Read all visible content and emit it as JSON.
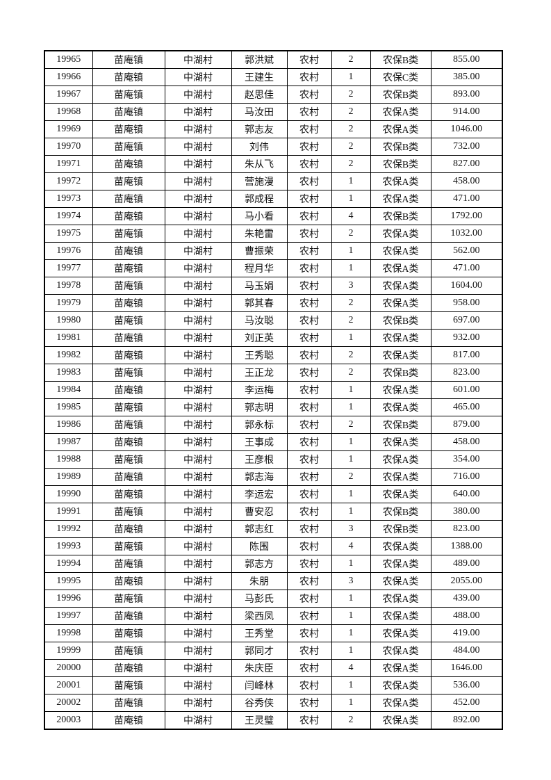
{
  "page": {
    "kind": "printed-table-page"
  },
  "colors": {
    "background": "#ffffff",
    "border": "#000000",
    "text": "#111111"
  },
  "table": {
    "cell_names": [
      "serial",
      "town",
      "village",
      "name",
      "residence-type",
      "count",
      "insurance-category",
      "amount"
    ],
    "rows": [
      [
        "19965",
        "苗庵镇",
        "中湖村",
        "郭洪斌",
        "农村",
        "2",
        "农保B类",
        "855.00"
      ],
      [
        "19966",
        "苗庵镇",
        "中湖村",
        "王建生",
        "农村",
        "1",
        "农保C类",
        "385.00"
      ],
      [
        "19967",
        "苗庵镇",
        "中湖村",
        "赵思佳",
        "农村",
        "2",
        "农保B类",
        "893.00"
      ],
      [
        "19968",
        "苗庵镇",
        "中湖村",
        "马汝田",
        "农村",
        "2",
        "农保A类",
        "914.00"
      ],
      [
        "19969",
        "苗庵镇",
        "中湖村",
        "郭志友",
        "农村",
        "2",
        "农保A类",
        "1046.00"
      ],
      [
        "19970",
        "苗庵镇",
        "中湖村",
        "刘伟",
        "农村",
        "2",
        "农保B类",
        "732.00"
      ],
      [
        "19971",
        "苗庵镇",
        "中湖村",
        "朱从飞",
        "农村",
        "2",
        "农保B类",
        "827.00"
      ],
      [
        "19972",
        "苗庵镇",
        "中湖村",
        "营施漫",
        "农村",
        "1",
        "农保A类",
        "458.00"
      ],
      [
        "19973",
        "苗庵镇",
        "中湖村",
        "郭成程",
        "农村",
        "1",
        "农保A类",
        "471.00"
      ],
      [
        "19974",
        "苗庵镇",
        "中湖村",
        "马小看",
        "农村",
        "4",
        "农保B类",
        "1792.00"
      ],
      [
        "19975",
        "苗庵镇",
        "中湖村",
        "朱艳雷",
        "农村",
        "2",
        "农保A类",
        "1032.00"
      ],
      [
        "19976",
        "苗庵镇",
        "中湖村",
        "曹振荣",
        "农村",
        "1",
        "农保A类",
        "562.00"
      ],
      [
        "19977",
        "苗庵镇",
        "中湖村",
        "程月华",
        "农村",
        "1",
        "农保A类",
        "471.00"
      ],
      [
        "19978",
        "苗庵镇",
        "中湖村",
        "马玉娟",
        "农村",
        "3",
        "农保A类",
        "1604.00"
      ],
      [
        "19979",
        "苗庵镇",
        "中湖村",
        "郭其春",
        "农村",
        "2",
        "农保A类",
        "958.00"
      ],
      [
        "19980",
        "苗庵镇",
        "中湖村",
        "马汝聪",
        "农村",
        "2",
        "农保B类",
        "697.00"
      ],
      [
        "19981",
        "苗庵镇",
        "中湖村",
        "刘正英",
        "农村",
        "1",
        "农保A类",
        "932.00"
      ],
      [
        "19982",
        "苗庵镇",
        "中湖村",
        "王秀聪",
        "农村",
        "2",
        "农保A类",
        "817.00"
      ],
      [
        "19983",
        "苗庵镇",
        "中湖村",
        "王正龙",
        "农村",
        "2",
        "农保B类",
        "823.00"
      ],
      [
        "19984",
        "苗庵镇",
        "中湖村",
        "李运梅",
        "农村",
        "1",
        "农保A类",
        "601.00"
      ],
      [
        "19985",
        "苗庵镇",
        "中湖村",
        "郭志明",
        "农村",
        "1",
        "农保A类",
        "465.00"
      ],
      [
        "19986",
        "苗庵镇",
        "中湖村",
        "郭永标",
        "农村",
        "2",
        "农保B类",
        "879.00"
      ],
      [
        "19987",
        "苗庵镇",
        "中湖村",
        "王事成",
        "农村",
        "1",
        "农保A类",
        "458.00"
      ],
      [
        "19988",
        "苗庵镇",
        "中湖村",
        "王彦根",
        "农村",
        "1",
        "农保A类",
        "354.00"
      ],
      [
        "19989",
        "苗庵镇",
        "中湖村",
        "郭志海",
        "农村",
        "2",
        "农保A类",
        "716.00"
      ],
      [
        "19990",
        "苗庵镇",
        "中湖村",
        "李运宏",
        "农村",
        "1",
        "农保A类",
        "640.00"
      ],
      [
        "19991",
        "苗庵镇",
        "中湖村",
        "曹安忍",
        "农村",
        "1",
        "农保B类",
        "380.00"
      ],
      [
        "19992",
        "苗庵镇",
        "中湖村",
        "郭志红",
        "农村",
        "3",
        "农保B类",
        "823.00"
      ],
      [
        "19993",
        "苗庵镇",
        "中湖村",
        "陈围",
        "农村",
        "4",
        "农保A类",
        "1388.00"
      ],
      [
        "19994",
        "苗庵镇",
        "中湖村",
        "郭志方",
        "农村",
        "1",
        "农保A类",
        "489.00"
      ],
      [
        "19995",
        "苗庵镇",
        "中湖村",
        "朱朋",
        "农村",
        "3",
        "农保A类",
        "2055.00"
      ],
      [
        "19996",
        "苗庵镇",
        "中湖村",
        "马彭氏",
        "农村",
        "1",
        "农保A类",
        "439.00"
      ],
      [
        "19997",
        "苗庵镇",
        "中湖村",
        "梁西凤",
        "农村",
        "1",
        "农保A类",
        "488.00"
      ],
      [
        "19998",
        "苗庵镇",
        "中湖村",
        "王秀堂",
        "农村",
        "1",
        "农保A类",
        "419.00"
      ],
      [
        "19999",
        "苗庵镇",
        "中湖村",
        "郭同才",
        "农村",
        "1",
        "农保A类",
        "484.00"
      ],
      [
        "20000",
        "苗庵镇",
        "中湖村",
        "朱庆臣",
        "农村",
        "4",
        "农保A类",
        "1646.00"
      ],
      [
        "20001",
        "苗庵镇",
        "中湖村",
        "闫峰林",
        "农村",
        "1",
        "农保A类",
        "536.00"
      ],
      [
        "20002",
        "苗庵镇",
        "中湖村",
        "谷秀侠",
        "农村",
        "1",
        "农保A类",
        "452.00"
      ],
      [
        "20003",
        "苗庵镇",
        "中湖村",
        "王灵璧",
        "农村",
        "2",
        "农保A类",
        "892.00"
      ]
    ]
  }
}
